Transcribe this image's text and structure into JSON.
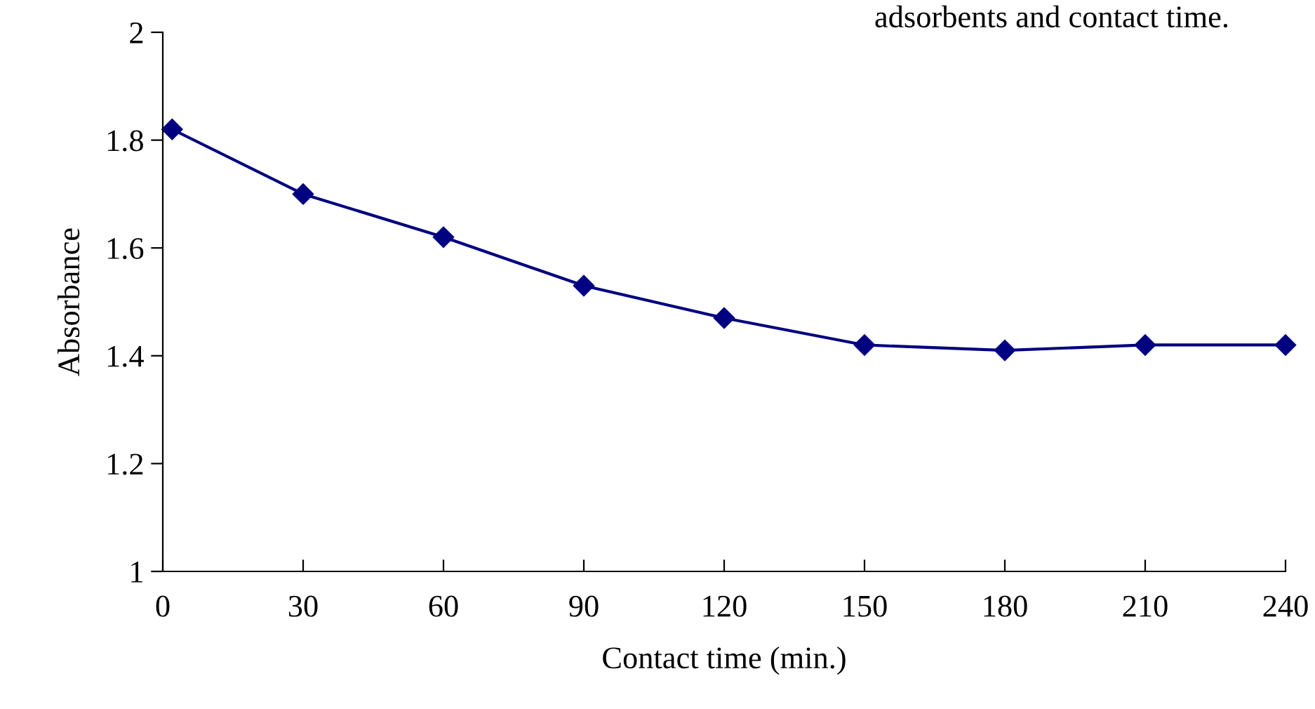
{
  "chart_data": {
    "type": "line",
    "xlabel": "Contact time (min.)",
    "ylabel": "Absorbance",
    "annotations": [
      "adsorbents and contact time."
    ],
    "series": [
      {
        "color": "#000080",
        "x": [
          2,
          30,
          60,
          90,
          120,
          150,
          180,
          210,
          240
        ],
        "values": [
          1.82,
          1.7,
          1.62,
          1.53,
          1.47,
          1.42,
          1.41,
          1.42,
          1.42
        ]
      }
    ],
    "xlim": [
      0,
      240
    ],
    "xticks": [
      0,
      30,
      60,
      90,
      120,
      150,
      180,
      210,
      240
    ],
    "ylim": [
      1,
      2
    ],
    "yticks": [
      1,
      1.2,
      1.4,
      1.6,
      1.8,
      2
    ],
    "marker": "diamond",
    "line_style": "solid"
  }
}
